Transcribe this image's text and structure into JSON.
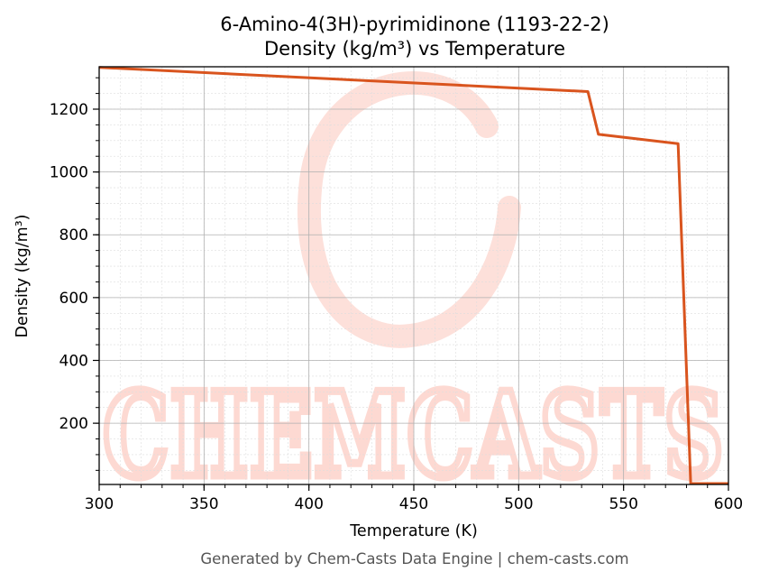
{
  "chart_data": {
    "type": "line",
    "title": "6-Amino-4(3H)-pyrimidinone (1193-22-2)",
    "subtitle": "Density (kg/m³) vs Temperature",
    "xlabel": "Temperature (K)",
    "ylabel": "Density (kg/m³)",
    "xlim": [
      300,
      600
    ],
    "ylim": [
      5,
      1335
    ],
    "xticks": [
      300,
      350,
      400,
      450,
      500,
      550,
      600
    ],
    "yticks": [
      200,
      400,
      600,
      800,
      1000,
      1200
    ],
    "grid": true,
    "minor_grid": true,
    "series": [
      {
        "color": "#d9541e",
        "x": [
          300,
          533,
          538,
          576,
          582,
          600
        ],
        "y": [
          1333,
          1256,
          1120,
          1090,
          8,
          8
        ]
      }
    ]
  },
  "watermark": {
    "text": "CHEMCASTS",
    "color": "#fdd9d2"
  },
  "footer": "Generated by Chem-Casts Data Engine | chem-casts.com"
}
